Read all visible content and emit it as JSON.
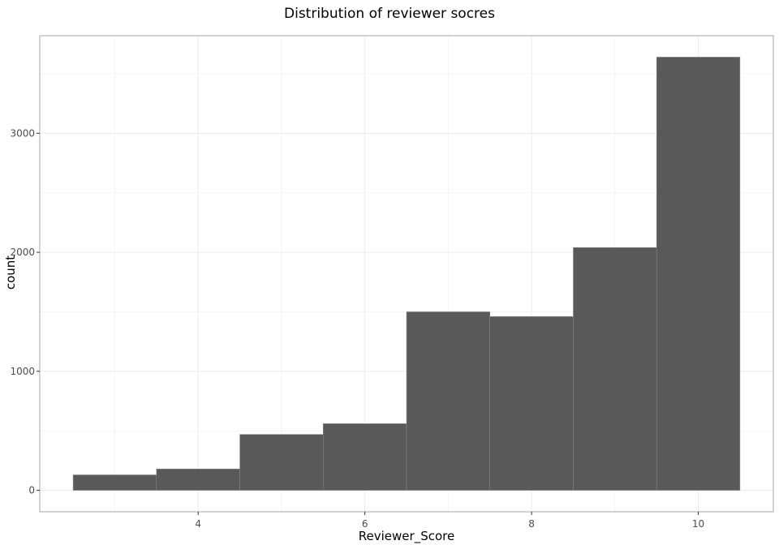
{
  "chart_data": {
    "type": "bar",
    "title": "Distribution of reviewer socres",
    "xlabel": "Reviewer_Score",
    "ylabel": "count",
    "bins": [
      {
        "x_start": 2.5,
        "x_end": 3.5,
        "count": 130
      },
      {
        "x_start": 3.5,
        "x_end": 4.5,
        "count": 180
      },
      {
        "x_start": 4.5,
        "x_end": 5.5,
        "count": 470
      },
      {
        "x_start": 5.5,
        "x_end": 6.5,
        "count": 560
      },
      {
        "x_start": 6.5,
        "x_end": 7.5,
        "count": 1500
      },
      {
        "x_start": 7.5,
        "x_end": 8.5,
        "count": 1460
      },
      {
        "x_start": 8.5,
        "x_end": 9.5,
        "count": 2040
      },
      {
        "x_start": 9.5,
        "x_end": 10.5,
        "count": 3640
      }
    ],
    "xlim": [
      2.1,
      10.9
    ],
    "ylim": [
      -180,
      3820
    ],
    "x_ticks": [
      4,
      6,
      8,
      10
    ],
    "x_tick_labels": [
      "4",
      "6",
      "8",
      "10"
    ],
    "y_ticks": [
      0,
      1000,
      2000,
      3000
    ],
    "y_tick_labels": [
      "0",
      "1000",
      "2000",
      "3000"
    ],
    "grid": true,
    "bar_color": "#595959",
    "bar_outline_color": "#8c8c8c",
    "panel_border_color": "#b3b3b3",
    "grid_color": "#ebebeb"
  }
}
